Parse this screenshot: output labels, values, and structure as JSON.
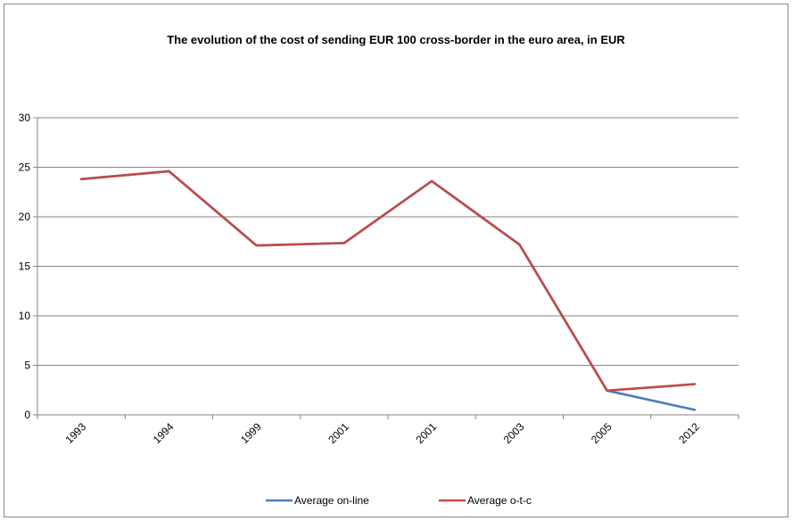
{
  "chart_data": {
    "type": "line",
    "title": "The evolution of the cost of sending EUR 100 cross-border in the euro area, in EUR",
    "xlabel": "",
    "ylabel": "",
    "categories": [
      "1993",
      "1994",
      "1999",
      "2001",
      "2001",
      "2003",
      "2005",
      "2012"
    ],
    "ylim": [
      0,
      30
    ],
    "yticks": [
      0,
      5,
      10,
      15,
      20,
      25,
      30
    ],
    "grid": true,
    "legend_position": "bottom",
    "series": [
      {
        "name": "Average on-line",
        "color": "#4a7ebb",
        "values": [
          23.8,
          24.6,
          17.1,
          17.35,
          23.6,
          17.2,
          2.45,
          0.5
        ]
      },
      {
        "name": "Average o-t-c",
        "color": "#be4b48",
        "values": [
          23.8,
          24.6,
          17.1,
          17.35,
          23.6,
          17.2,
          2.45,
          3.1
        ]
      }
    ]
  }
}
